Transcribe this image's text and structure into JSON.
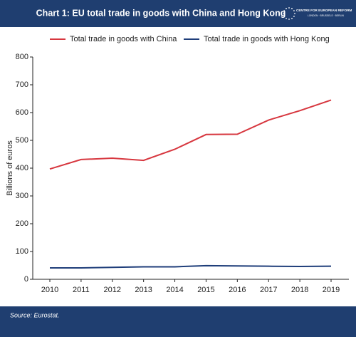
{
  "chart_data": {
    "type": "line",
    "title": "Chart 1: EU total trade in goods with China and Hong Kong",
    "ylabel": "Billions of euros",
    "source": "Source: Eurostat.",
    "categories": [
      "2010",
      "2011",
      "2012",
      "2013",
      "2014",
      "2015",
      "2016",
      "2017",
      "2018",
      "2019"
    ],
    "series": [
      {
        "name": "Total trade in goods with China",
        "color": "#d7373f",
        "values": [
          397,
          431,
          436,
          428,
          468,
          521,
          522,
          573,
          607,
          645
        ]
      },
      {
        "name": "Total trade in goods with Hong Kong",
        "color": "#1f3e7a",
        "values": [
          41,
          41,
          43,
          45,
          45,
          49,
          48,
          47,
          46,
          47
        ]
      }
    ],
    "ylim": [
      0,
      800
    ],
    "yticks": [
      0,
      100,
      200,
      300,
      400,
      500,
      600,
      700,
      800
    ],
    "grid": false,
    "legend": "top"
  },
  "logo": {
    "name": "CENTRE FOR EUROPEAN REFORM",
    "cities": "LONDON · BRUSSELS · BERLIN"
  }
}
